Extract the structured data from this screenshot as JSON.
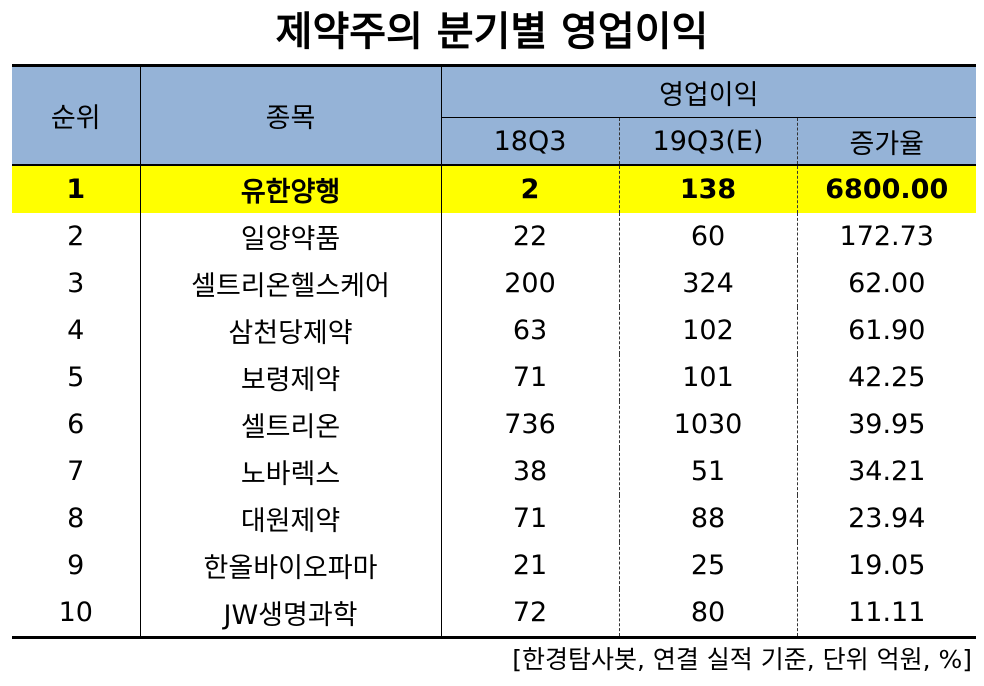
{
  "title": "제약주의 분기별 영업이익",
  "headers": {
    "rank": "순위",
    "name": "종목",
    "group": "영업이익",
    "q1": "18Q3",
    "q2": "19Q3(E)",
    "change": "증가율"
  },
  "highlight_color": "#ffff00",
  "header_color": "#95b3d7",
  "rows": [
    {
      "rank": "1",
      "name": "유한양행",
      "q1": "2",
      "q2": "138",
      "change": "6800.00"
    },
    {
      "rank": "2",
      "name": "일양약품",
      "q1": "22",
      "q2": "60",
      "change": "172.73"
    },
    {
      "rank": "3",
      "name": "셀트리온헬스케어",
      "q1": "200",
      "q2": "324",
      "change": "62.00"
    },
    {
      "rank": "4",
      "name": "삼천당제약",
      "q1": "63",
      "q2": "102",
      "change": "61.90"
    },
    {
      "rank": "5",
      "name": "보령제약",
      "q1": "71",
      "q2": "101",
      "change": "42.25"
    },
    {
      "rank": "6",
      "name": "셀트리온",
      "q1": "736",
      "q2": "1030",
      "change": "39.95"
    },
    {
      "rank": "7",
      "name": "노바렉스",
      "q1": "38",
      "q2": "51",
      "change": "34.21"
    },
    {
      "rank": "8",
      "name": "대원제약",
      "q1": "71",
      "q2": "88",
      "change": "23.94"
    },
    {
      "rank": "9",
      "name": "한올바이오파마",
      "q1": "21",
      "q2": "25",
      "change": "19.05"
    },
    {
      "rank": "10",
      "name": "JW생명과학",
      "q1": "72",
      "q2": "80",
      "change": "11.11"
    }
  ],
  "footnote": "[한경탐사봇, 연결 실적 기준, 단위 억원, %]",
  "chart_data": {
    "type": "table",
    "title": "제약주의 분기별 영업이익",
    "columns": [
      "순위",
      "종목",
      "18Q3",
      "19Q3(E)",
      "증가율"
    ],
    "column_group": {
      "label": "영업이익",
      "spans": [
        "18Q3",
        "19Q3(E)",
        "증가율"
      ]
    },
    "rows": [
      [
        1,
        "유한양행",
        2,
        138,
        6800.0
      ],
      [
        2,
        "일양약품",
        22,
        60,
        172.73
      ],
      [
        3,
        "셀트리온헬스케어",
        200,
        324,
        62.0
      ],
      [
        4,
        "삼천당제약",
        63,
        102,
        61.9
      ],
      [
        5,
        "보령제약",
        71,
        101,
        42.25
      ],
      [
        6,
        "셀트리온",
        736,
        1030,
        39.95
      ],
      [
        7,
        "노바렉스",
        38,
        51,
        34.21
      ],
      [
        8,
        "대원제약",
        71,
        88,
        23.94
      ],
      [
        9,
        "한올바이오파마",
        21,
        25,
        19.05
      ],
      [
        10,
        "JW생명과학",
        72,
        80,
        11.11
      ]
    ],
    "highlighted_row": 1,
    "note": "[한경탐사봇, 연결 실적 기준, 단위 억원, %]"
  }
}
